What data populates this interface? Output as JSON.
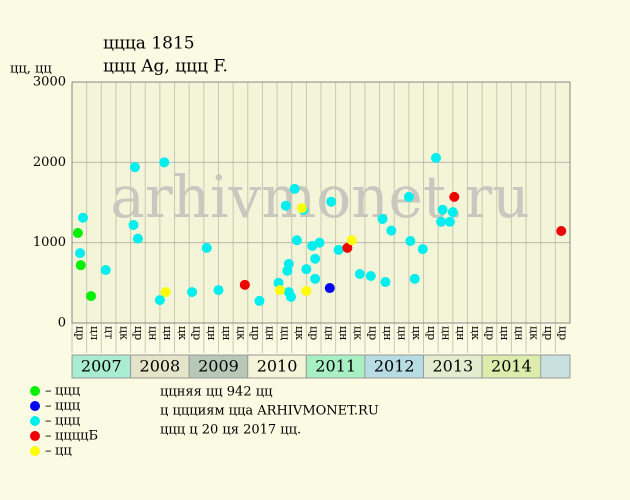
{
  "chart_data": {
    "type": "scatter",
    "title": "ццца 1815",
    "subtitle": "ццц Ag, ццц F.",
    "y_label": "цц, цц",
    "watermark": "arhivmonet.ru",
    "xlim": [
      0,
      34
    ],
    "ylim": [
      0,
      3000
    ],
    "yticks": [
      0,
      1000,
      2000,
      3000
    ],
    "grid": true,
    "column_labels": [
      "цр",
      "цл",
      "цт",
      "цк",
      "цр",
      "цн",
      "цн",
      "цк",
      "цр",
      "цн",
      "цн",
      "цк",
      "цр",
      "цн",
      "цц",
      "цк",
      "цр",
      "цн",
      "цн",
      "цк",
      "цр",
      "цн",
      "цн",
      "цк",
      "цр",
      "цн",
      "цн",
      "цк",
      "цр",
      "цн",
      "цн",
      "цк",
      "цр",
      "цр"
    ],
    "year_bands": [
      {
        "label": "2007",
        "start": 0,
        "end": 4,
        "color": "#a8ecd4"
      },
      {
        "label": "2008",
        "start": 4,
        "end": 8,
        "color": "#e4e4c8"
      },
      {
        "label": "2009",
        "start": 8,
        "end": 12,
        "color": "#b8c8b8"
      },
      {
        "label": "2010",
        "start": 12,
        "end": 16,
        "color": "#f4f4d8"
      },
      {
        "label": "2011",
        "start": 16,
        "end": 20,
        "color": "#a8f0c4"
      },
      {
        "label": "2012",
        "start": 20,
        "end": 24,
        "color": "#b8dce4"
      },
      {
        "label": "2013",
        "start": 24,
        "end": 28,
        "color": "#e4ecd0"
      },
      {
        "label": "2014",
        "start": 28,
        "end": 32,
        "color": "#dcecac"
      }
    ],
    "series": [
      {
        "name": "ццц",
        "color": "#00ee00",
        "x": [
          0.4,
          0.6,
          1.3
        ],
        "values": [
          1120,
          720,
          335
        ]
      },
      {
        "name": "ццц",
        "color": "#0000ee",
        "x": [
          17.6
        ],
        "values": [
          435
        ]
      },
      {
        "name": "ццц",
        "color": "#00eeee",
        "x": [
          0.75,
          0.55,
          2.3,
          4.3,
          4.2,
          4.5,
          6.3,
          6.0,
          8.2,
          9.2,
          10.0,
          12.8,
          14.1,
          14.6,
          14.8,
          14.7,
          14.8,
          14.95,
          15.2,
          15.35,
          15.8,
          16.0,
          16.4,
          16.6,
          16.9,
          16.6,
          17.7,
          18.2,
          19.65,
          20.4,
          21.2,
          21.4,
          21.8,
          23.0,
          23.1,
          23.4,
          23.95,
          24.85,
          25.3,
          25.2,
          25.8,
          26.0
        ],
        "values": [
          1310,
          870,
          660,
          1940,
          1220,
          1050,
          2000,
          285,
          385,
          935,
          410,
          275,
          500,
          1460,
          735,
          650,
          385,
          325,
          1670,
          1030,
          1410,
          670,
          960,
          800,
          1000,
          550,
          1510,
          910,
          610,
          585,
          1295,
          510,
          1150,
          1570,
          1020,
          550,
          920,
          2055,
          1410,
          1260,
          1260,
          1380
        ]
      },
      {
        "name": "ццццБ",
        "color": "#ee0000",
        "x": [
          11.8,
          18.8,
          26.1,
          33.4
        ],
        "values": [
          475,
          935,
          1570,
          1145
        ]
      },
      {
        "name": "цц",
        "color": "#ffff00",
        "x": [
          6.4,
          14.2,
          15.7,
          16.0,
          19.1
        ],
        "values": [
          385,
          410,
          1430,
          400,
          1030
        ]
      }
    ],
    "notes": [
      "ццняя цц 942 цц",
      "ц ццциям цца ARHIVMONET.RU",
      "ццц ц 20 ця 2017 цц."
    ]
  }
}
